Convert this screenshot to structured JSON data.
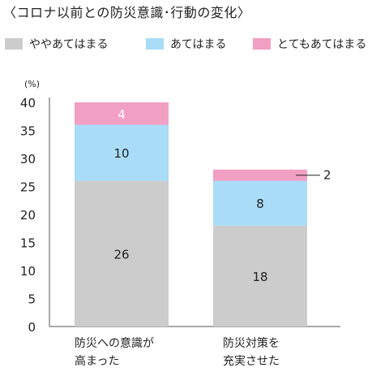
{
  "title": "〈コロナ以前との防災意識･行動の変化〉",
  "chart_data": {
    "type": "bar",
    "stacked": true,
    "unit": "(%)",
    "categories": [
      [
        "防災への意識が",
        "高まった"
      ],
      [
        "防災対策を",
        "充実させた"
      ]
    ],
    "series": [
      {
        "name": "ややあてはまる",
        "values": [
          26,
          18
        ],
        "color": "#cccccc",
        "label_color": "#222222"
      },
      {
        "name": "あてはまる",
        "values": [
          10,
          8
        ],
        "color": "#a9dcf7",
        "label_color": "#222222"
      },
      {
        "name": "とてもあてはまる",
        "values": [
          4,
          2
        ],
        "color": "#f19fc2",
        "label_color": "#ffffff"
      }
    ],
    "yticks": [
      0,
      5,
      10,
      15,
      20,
      25,
      30,
      35,
      40
    ],
    "ylim": [
      0,
      40
    ],
    "legend_position": "top",
    "grid": false
  }
}
